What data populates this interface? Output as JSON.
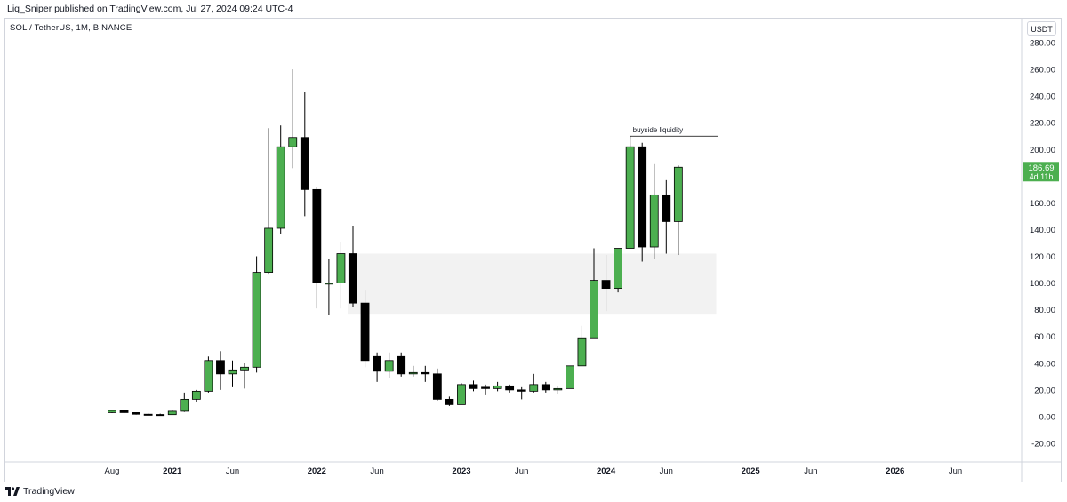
{
  "header": {
    "published_by": "Liq_Sniper published on TradingView.com, Jul 27, 2024 09:24 UTC-4",
    "symbol_line": "SOL / TetherUS, 1M, BINANCE",
    "currency_button": "USDT"
  },
  "footer": {
    "brand": "TradingView"
  },
  "colors": {
    "up": "#4caf50",
    "down": "#000000",
    "zone": "#f2f2f2",
    "price_tag": "#4caf50",
    "axis_text": "#131722",
    "border": "#d1d4dc"
  },
  "chart_data": {
    "type": "candlestick",
    "title": "SOL / TetherUS, 1M, BINANCE",
    "ylim": [
      -25,
      285
    ],
    "xlim": [
      "2020-07",
      "2026-09"
    ],
    "y_ticks": [
      "280.00",
      "260.00",
      "240.00",
      "220.00",
      "200.00",
      "180.00",
      "160.00",
      "140.00",
      "120.00",
      "100.00",
      "80.00",
      "60.00",
      "40.00",
      "20.00",
      "0.00",
      "-20.00"
    ],
    "x_ticks": [
      {
        "label": "Aug",
        "month": "2020-08",
        "bold": false
      },
      {
        "label": "2021",
        "month": "2021-01",
        "bold": true
      },
      {
        "label": "Jun",
        "month": "2021-06",
        "bold": false
      },
      {
        "label": "2022",
        "month": "2022-01",
        "bold": true
      },
      {
        "label": "Jun",
        "month": "2022-06",
        "bold": false
      },
      {
        "label": "2023",
        "month": "2023-01",
        "bold": true
      },
      {
        "label": "Jun",
        "month": "2023-06",
        "bold": false
      },
      {
        "label": "2024",
        "month": "2024-01",
        "bold": true
      },
      {
        "label": "Jun",
        "month": "2024-06",
        "bold": false
      },
      {
        "label": "2025",
        "month": "2025-01",
        "bold": true
      },
      {
        "label": "Jun",
        "month": "2025-06",
        "bold": false
      },
      {
        "label": "2026",
        "month": "2026-01",
        "bold": true
      },
      {
        "label": "Jun",
        "month": "2026-06",
        "bold": false
      }
    ],
    "candles": [
      {
        "month": "2020-08",
        "open": 3.0,
        "high": 4.9,
        "low": 2.7,
        "close": 4.6
      },
      {
        "month": "2020-09",
        "open": 4.6,
        "high": 5.0,
        "low": 2.5,
        "close": 3.0
      },
      {
        "month": "2020-10",
        "open": 3.0,
        "high": 3.2,
        "low": 1.5,
        "close": 1.8
      },
      {
        "month": "2020-11",
        "open": 1.8,
        "high": 2.4,
        "low": 1.2,
        "close": 1.6
      },
      {
        "month": "2020-12",
        "open": 1.6,
        "high": 2.2,
        "low": 1.1,
        "close": 1.5
      },
      {
        "month": "2021-01",
        "open": 1.5,
        "high": 4.8,
        "low": 1.4,
        "close": 4.0
      },
      {
        "month": "2021-02",
        "open": 4.0,
        "high": 18.0,
        "low": 3.5,
        "close": 13.0
      },
      {
        "month": "2021-03",
        "open": 13.0,
        "high": 20.0,
        "low": 11.0,
        "close": 19.0
      },
      {
        "month": "2021-04",
        "open": 19.0,
        "high": 45.0,
        "low": 18.0,
        "close": 42.0
      },
      {
        "month": "2021-05",
        "open": 42.0,
        "high": 49.0,
        "low": 20.0,
        "close": 32.0
      },
      {
        "month": "2021-06",
        "open": 32.0,
        "high": 42.0,
        "low": 22.0,
        "close": 35.0
      },
      {
        "month": "2021-07",
        "open": 35.0,
        "high": 40.0,
        "low": 21.0,
        "close": 37.0
      },
      {
        "month": "2021-08",
        "open": 37.0,
        "high": 120.0,
        "low": 33.0,
        "close": 108.0
      },
      {
        "month": "2021-09",
        "open": 108.0,
        "high": 216.0,
        "low": 107.0,
        "close": 141.0
      },
      {
        "month": "2021-10",
        "open": 141.0,
        "high": 218.0,
        "low": 137.0,
        "close": 202.0
      },
      {
        "month": "2021-11",
        "open": 202.0,
        "high": 260.0,
        "low": 186.0,
        "close": 209.0
      },
      {
        "month": "2021-12",
        "open": 209.0,
        "high": 243.0,
        "low": 150.0,
        "close": 170.0
      },
      {
        "month": "2022-01",
        "open": 170.0,
        "high": 172.0,
        "low": 81.0,
        "close": 100.0
      },
      {
        "month": "2022-02",
        "open": 100.0,
        "high": 118.0,
        "low": 76.0,
        "close": 100.0
      },
      {
        "month": "2022-03",
        "open": 100.0,
        "high": 131.0,
        "low": 81.0,
        "close": 122.0
      },
      {
        "month": "2022-04",
        "open": 122.0,
        "high": 143.0,
        "low": 82.0,
        "close": 85.0
      },
      {
        "month": "2022-05",
        "open": 85.0,
        "high": 95.0,
        "low": 37.0,
        "close": 42.0
      },
      {
        "month": "2022-06",
        "open": 45.0,
        "high": 48.0,
        "low": 26.0,
        "close": 34.0
      },
      {
        "month": "2022-07",
        "open": 34.0,
        "high": 48.0,
        "low": 29.0,
        "close": 42.0
      },
      {
        "month": "2022-08",
        "open": 45.0,
        "high": 48.0,
        "low": 30.0,
        "close": 32.0
      },
      {
        "month": "2022-09",
        "open": 32.0,
        "high": 38.0,
        "low": 30.0,
        "close": 33.0
      },
      {
        "month": "2022-10",
        "open": 33.0,
        "high": 38.0,
        "low": 26.0,
        "close": 32.0
      },
      {
        "month": "2022-11",
        "open": 32.0,
        "high": 36.0,
        "low": 12.0,
        "close": 13.0
      },
      {
        "month": "2022-12",
        "open": 13.0,
        "high": 15.0,
        "low": 8.0,
        "close": 9.0
      },
      {
        "month": "2023-01",
        "open": 9.0,
        "high": 25.0,
        "low": 9.0,
        "close": 24.0
      },
      {
        "month": "2023-02",
        "open": 24.0,
        "high": 27.0,
        "low": 19.0,
        "close": 21.0
      },
      {
        "month": "2023-03",
        "open": 22.0,
        "high": 24.0,
        "low": 16.0,
        "close": 21.0
      },
      {
        "month": "2023-04",
        "open": 21.0,
        "high": 26.0,
        "low": 19.0,
        "close": 23.0
      },
      {
        "month": "2023-05",
        "open": 23.0,
        "high": 24.0,
        "low": 18.0,
        "close": 20.0
      },
      {
        "month": "2023-06",
        "open": 20.0,
        "high": 22.0,
        "low": 13.0,
        "close": 19.0
      },
      {
        "month": "2023-07",
        "open": 19.0,
        "high": 32.0,
        "low": 18.0,
        "close": 24.0
      },
      {
        "month": "2023-08",
        "open": 24.0,
        "high": 26.0,
        "low": 18.0,
        "close": 20.0
      },
      {
        "month": "2023-09",
        "open": 20.0,
        "high": 23.0,
        "low": 17.0,
        "close": 21.0
      },
      {
        "month": "2023-10",
        "open": 21.0,
        "high": 38.0,
        "low": 21.0,
        "close": 38.0
      },
      {
        "month": "2023-11",
        "open": 38.0,
        "high": 68.0,
        "low": 38.0,
        "close": 59.0
      },
      {
        "month": "2023-12",
        "open": 59.0,
        "high": 126.0,
        "low": 59.0,
        "close": 102.0
      },
      {
        "month": "2024-01",
        "open": 102.0,
        "high": 121.0,
        "low": 79.0,
        "close": 96.0
      },
      {
        "month": "2024-02",
        "open": 96.0,
        "high": 126.0,
        "low": 93.0,
        "close": 126.0
      },
      {
        "month": "2024-03",
        "open": 126.0,
        "high": 210.0,
        "low": 126.0,
        "close": 202.0
      },
      {
        "month": "2024-04",
        "open": 202.0,
        "high": 205.0,
        "low": 116.0,
        "close": 127.0
      },
      {
        "month": "2024-05",
        "open": 127.0,
        "high": 189.0,
        "low": 118.0,
        "close": 166.0
      },
      {
        "month": "2024-06",
        "open": 166.0,
        "high": 177.0,
        "low": 122.0,
        "close": 146.0
      },
      {
        "month": "2024-07",
        "open": 146.0,
        "high": 188.0,
        "low": 121.0,
        "close": 186.69
      }
    ],
    "zone": {
      "from_month": "2022-04",
      "to_month": "2024-10",
      "low": 77.0,
      "high": 122.0
    },
    "annotation": {
      "text": "buyside liquidity",
      "price": 210.0,
      "from_month": "2024-03",
      "to_month": "2024-10"
    },
    "last_price": {
      "value": "186.69",
      "countdown": "4d 11h"
    }
  }
}
